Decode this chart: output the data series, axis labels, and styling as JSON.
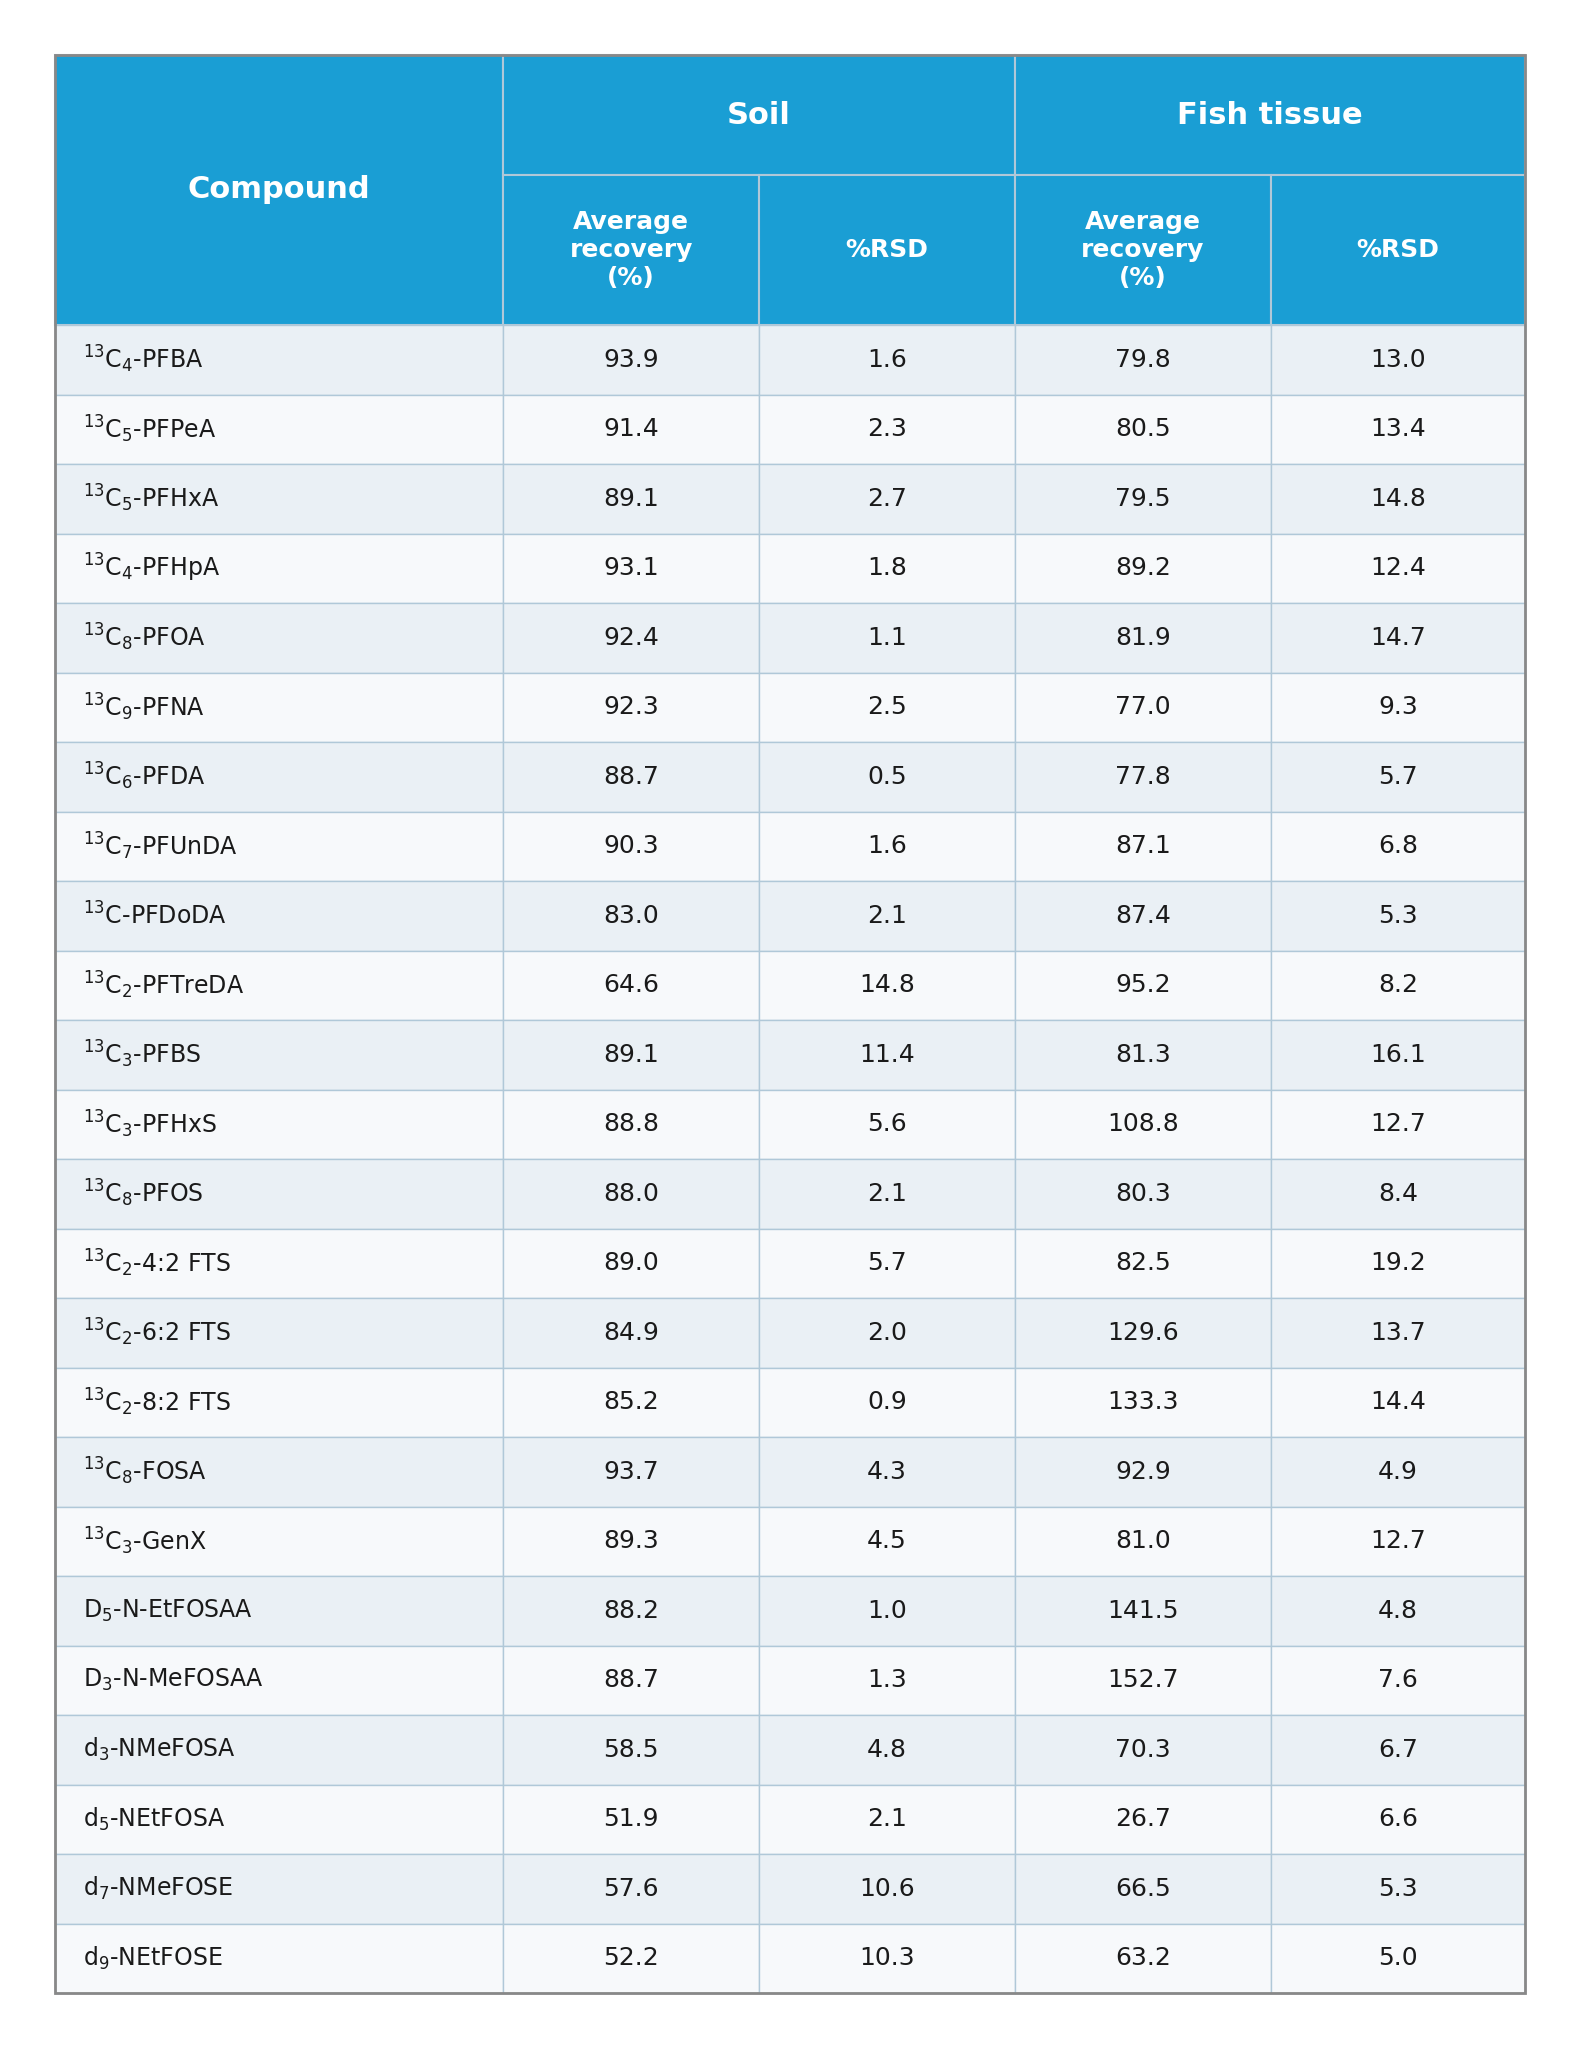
{
  "header_bg": "#1a9ed4",
  "header_text": "#ffffff",
  "row_bg_odd": "#eaf0f5",
  "row_bg_even": "#f7f9fb",
  "data_text": "#1a1a1a",
  "border_color": "#b0c8d8",
  "outer_border": "#888888",
  "compounds_display": [
    "$^{13}$C$_4$-PFBA",
    "$^{13}$C$_5$-PFPeA",
    "$^{13}$C$_5$-PFHxA",
    "$^{13}$C$_4$-PFHpA",
    "$^{13}$C$_8$-PFOA",
    "$^{13}$C$_9$-PFNA",
    "$^{13}$C$_6$-PFDA",
    "$^{13}$C$_7$-PFUnDA",
    "$^{13}$C-PFDoDA",
    "$^{13}$C$_2$-PFTreDA",
    "$^{13}$C$_3$-PFBS",
    "$^{13}$C$_3$-PFHxS",
    "$^{13}$C$_8$-PFOS",
    "$^{13}$C$_2$-4:2 FTS",
    "$^{13}$C$_2$-6:2 FTS",
    "$^{13}$C$_2$-8:2 FTS",
    "$^{13}$C$_8$-FOSA",
    "$^{13}$C$_3$-GenX",
    "D$_5$-N-EtFOSAA",
    "D$_3$-N-MeFOSAA",
    "d$_3$-NMeFOSA",
    "d$_5$-NEtFOSA",
    "d$_7$-NMeFOSE",
    "d$_9$-NEtFOSE"
  ],
  "soil_avg": [
    93.9,
    91.4,
    89.1,
    93.1,
    92.4,
    92.3,
    88.7,
    90.3,
    83.0,
    64.6,
    89.1,
    88.8,
    88.0,
    89.0,
    84.9,
    85.2,
    93.7,
    89.3,
    88.2,
    88.7,
    58.5,
    51.9,
    57.6,
    52.2
  ],
  "soil_rsd": [
    1.6,
    2.3,
    2.7,
    1.8,
    1.1,
    2.5,
    0.5,
    1.6,
    2.1,
    14.8,
    11.4,
    5.6,
    2.1,
    5.7,
    2.0,
    0.9,
    4.3,
    4.5,
    1.0,
    1.3,
    4.8,
    2.1,
    10.6,
    10.3
  ],
  "fish_avg": [
    79.8,
    80.5,
    79.5,
    89.2,
    81.9,
    77.0,
    77.8,
    87.1,
    87.4,
    95.2,
    81.3,
    108.8,
    80.3,
    82.5,
    129.6,
    133.3,
    92.9,
    81.0,
    141.5,
    152.7,
    70.3,
    26.7,
    66.5,
    63.2
  ],
  "fish_rsd": [
    13.0,
    13.4,
    14.8,
    12.4,
    14.7,
    9.3,
    5.7,
    6.8,
    5.3,
    8.2,
    16.1,
    12.7,
    8.4,
    19.2,
    13.7,
    14.4,
    4.9,
    12.7,
    4.8,
    7.6,
    6.7,
    6.6,
    5.3,
    5.0
  ]
}
